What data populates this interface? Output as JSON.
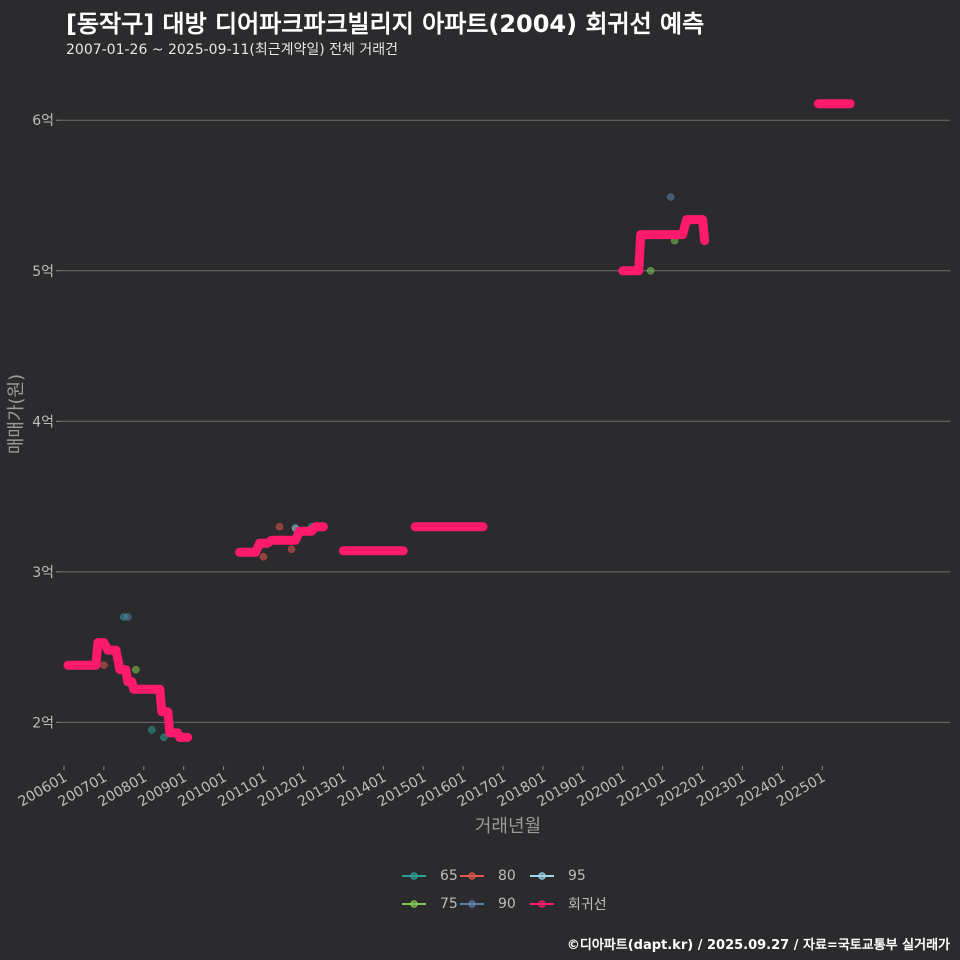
{
  "title": "[동작구] 대방 디어파크파크빌리지 아파트(2004) 회귀선 예측",
  "subtitle": "2007-01-26 ~ 2025-09-11(최근계약일) 전체 거래건",
  "caption": "©디아파트(dapt.kr) / 2025.09.27 / 자료=국토교통부 실거래가",
  "chart_data": {
    "type": "scatter",
    "xlabel": "거래년월",
    "ylabel": "매매가(원)",
    "xlim": [
      2005.9,
      2028.2
    ],
    "ylim": [
      1.75,
      6.4
    ],
    "x_ticks": [
      {
        "label": "200601",
        "value": 2006.0
      },
      {
        "label": "200701",
        "value": 2007.0
      },
      {
        "label": "200801",
        "value": 2008.0
      },
      {
        "label": "200901",
        "value": 2009.0
      },
      {
        "label": "201001",
        "value": 2010.0
      },
      {
        "label": "201101",
        "value": 2011.0
      },
      {
        "label": "201201",
        "value": 2012.0
      },
      {
        "label": "201301",
        "value": 2013.0
      },
      {
        "label": "201401",
        "value": 2014.0
      },
      {
        "label": "201501",
        "value": 2015.0
      },
      {
        "label": "201601",
        "value": 2016.0
      },
      {
        "label": "201701",
        "value": 2017.0
      },
      {
        "label": "201801",
        "value": 2018.0
      },
      {
        "label": "201901",
        "value": 2019.0
      },
      {
        "label": "202001",
        "value": 2020.0
      },
      {
        "label": "202101",
        "value": 2021.0
      },
      {
        "label": "202201",
        "value": 2022.0
      },
      {
        "label": "202301",
        "value": 2023.0
      },
      {
        "label": "202401",
        "value": 2024.0
      },
      {
        "label": "202501",
        "value": 2025.0
      }
    ],
    "y_ticks": [
      {
        "label": "2억",
        "value": 2
      },
      {
        "label": "3억",
        "value": 3
      },
      {
        "label": "4억",
        "value": 4
      },
      {
        "label": "5억",
        "value": 5
      },
      {
        "label": "6억",
        "value": 6
      }
    ],
    "series": [
      {
        "name": "65",
        "color": "#2aa198",
        "points": [
          [
            2007.5,
            2.7
          ],
          [
            2008.2,
            1.95
          ],
          [
            2008.5,
            1.9
          ],
          [
            2012.2,
            3.3
          ]
        ]
      },
      {
        "name": "75",
        "color": "#7ec850",
        "points": [
          [
            2007.8,
            2.35
          ],
          [
            2020.7,
            5.0
          ],
          [
            2021.3,
            5.2
          ]
        ]
      },
      {
        "name": "80",
        "color": "#e05550",
        "points": [
          [
            2007.0,
            2.38
          ],
          [
            2011.0,
            3.1
          ],
          [
            2011.4,
            3.3
          ],
          [
            2011.7,
            3.15
          ]
        ]
      },
      {
        "name": "90",
        "color": "#5b7fa8",
        "points": [
          [
            2007.6,
            2.7
          ],
          [
            2021.2,
            5.49
          ]
        ]
      },
      {
        "name": "95",
        "color": "#9fd6e8",
        "points": [
          [
            2011.8,
            3.29
          ]
        ]
      }
    ],
    "regression": {
      "name": "회귀선",
      "color": "#ff1a6c",
      "segments": [
        [
          [
            2006.1,
            2.38
          ],
          [
            2006.8,
            2.38
          ],
          [
            2006.85,
            2.53
          ],
          [
            2007.0,
            2.53
          ],
          [
            2007.1,
            2.48
          ],
          [
            2007.3,
            2.48
          ],
          [
            2007.4,
            2.35
          ],
          [
            2007.55,
            2.35
          ],
          [
            2007.6,
            2.27
          ],
          [
            2007.7,
            2.27
          ],
          [
            2007.75,
            2.22
          ],
          [
            2008.4,
            2.22
          ],
          [
            2008.45,
            2.07
          ],
          [
            2008.6,
            2.07
          ],
          [
            2008.65,
            1.93
          ],
          [
            2008.85,
            1.93
          ],
          [
            2008.9,
            1.9
          ],
          [
            2009.1,
            1.9
          ]
        ],
        [
          [
            2010.4,
            3.13
          ],
          [
            2010.8,
            3.13
          ],
          [
            2010.9,
            3.19
          ],
          [
            2011.1,
            3.19
          ],
          [
            2011.2,
            3.21
          ],
          [
            2011.8,
            3.21
          ],
          [
            2011.9,
            3.27
          ],
          [
            2012.2,
            3.27
          ],
          [
            2012.3,
            3.3
          ],
          [
            2012.5,
            3.3
          ]
        ],
        [
          [
            2013.0,
            3.14
          ],
          [
            2014.5,
            3.14
          ]
        ],
        [
          [
            2014.8,
            3.3
          ],
          [
            2016.5,
            3.3
          ]
        ],
        [
          [
            2020.0,
            5.0
          ],
          [
            2020.4,
            5.0
          ],
          [
            2020.45,
            5.24
          ],
          [
            2021.5,
            5.24
          ],
          [
            2021.6,
            5.34
          ],
          [
            2022.0,
            5.34
          ],
          [
            2022.05,
            5.2
          ]
        ],
        [
          [
            2024.9,
            6.11
          ],
          [
            2025.7,
            6.11
          ]
        ]
      ]
    },
    "legend": [
      {
        "label": "65",
        "color": "#2aa198"
      },
      {
        "label": "80",
        "color": "#e05550"
      },
      {
        "label": "95",
        "color": "#9fd6e8"
      },
      {
        "label": "75",
        "color": "#7ec850"
      },
      {
        "label": "90",
        "color": "#5b7fa8"
      },
      {
        "label": "회귀선",
        "color": "#ff1a6c"
      }
    ]
  }
}
